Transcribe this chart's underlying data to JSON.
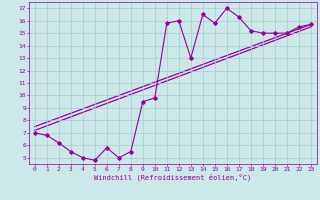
{
  "xlabel": "Windchill (Refroidissement éolien,°C)",
  "bg_color": "#cce8e8",
  "line_color": "#990099",
  "grid_color": "#aacccc",
  "x_ticks": [
    0,
    1,
    2,
    3,
    4,
    5,
    6,
    7,
    8,
    9,
    10,
    11,
    12,
    13,
    14,
    15,
    16,
    17,
    18,
    19,
    20,
    21,
    22,
    23
  ],
  "y_ticks": [
    5,
    6,
    7,
    8,
    9,
    10,
    11,
    12,
    13,
    14,
    15,
    16,
    17
  ],
  "ylim": [
    4.5,
    17.5
  ],
  "xlim": [
    -0.5,
    23.5
  ],
  "series1_x": [
    0,
    1,
    2,
    3,
    4,
    5,
    6,
    7,
    8,
    9,
    10,
    11,
    12,
    13,
    14,
    15,
    16,
    17,
    18,
    19,
    20,
    21,
    22,
    23
  ],
  "series1_y": [
    7.0,
    6.8,
    6.2,
    5.5,
    5.0,
    4.8,
    5.8,
    5.0,
    5.5,
    9.5,
    9.8,
    15.8,
    16.0,
    13.0,
    16.5,
    15.8,
    17.0,
    16.3,
    15.2,
    15.0,
    15.0,
    15.0,
    15.5,
    15.7
  ],
  "series2_x": [
    0,
    23
  ],
  "series2_y": [
    7.2,
    15.5
  ],
  "series3_x": [
    0,
    23
  ],
  "series3_y": [
    7.5,
    15.7
  ],
  "tick_fontsize": 4.5,
  "xlabel_fontsize": 5.0
}
